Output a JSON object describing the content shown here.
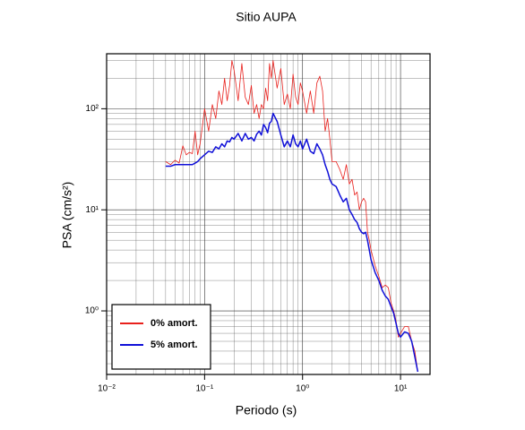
{
  "chart_data": {
    "type": "line",
    "title": "Sitio AUPA",
    "x_label": "Periodo (s)",
    "y_label": "PSA (cm/s²)",
    "x_scale": "log",
    "y_scale": "log",
    "grid": true,
    "legend": "lower left",
    "xlim": [
      0.01,
      20
    ],
    "ylim": [
      0.235,
      350
    ],
    "xticks": [
      {
        "value": 0.01,
        "label": "10⁻²"
      },
      {
        "value": 0.1,
        "label": "10⁻¹"
      },
      {
        "value": 1,
        "label": "10⁰"
      },
      {
        "value": 10,
        "label": "10¹"
      }
    ],
    "yticks": [
      {
        "value": 1,
        "label": "10⁰"
      },
      {
        "value": 10,
        "label": "10¹"
      },
      {
        "value": 100,
        "label": "10²"
      }
    ],
    "x": [
      0.04,
      0.045,
      0.05,
      0.055,
      0.06,
      0.065,
      0.07,
      0.075,
      0.08,
      0.085,
      0.09,
      0.1,
      0.11,
      0.12,
      0.13,
      0.14,
      0.15,
      0.16,
      0.17,
      0.18,
      0.19,
      0.2,
      0.22,
      0.24,
      0.26,
      0.28,
      0.3,
      0.32,
      0.34,
      0.36,
      0.38,
      0.4,
      0.42,
      0.44,
      0.46,
      0.48,
      0.5,
      0.55,
      0.6,
      0.65,
      0.7,
      0.75,
      0.8,
      0.85,
      0.9,
      0.95,
      1.0,
      1.1,
      1.2,
      1.3,
      1.4,
      1.5,
      1.6,
      1.7,
      1.8,
      1.9,
      2.0,
      2.2,
      2.4,
      2.6,
      2.8,
      3.0,
      3.2,
      3.4,
      3.6,
      3.8,
      4.0,
      4.2,
      4.4,
      4.6,
      4.8,
      5.0,
      5.5,
      6.0,
      6.5,
      7.0,
      7.5,
      8.0,
      8.5,
      9.0,
      9.5,
      10,
      11,
      12,
      13,
      14,
      15
    ],
    "series": [
      {
        "name": "0% amort.",
        "color": "#e8201c",
        "width": 0.8,
        "values": [
          30,
          28,
          31,
          29,
          43,
          35,
          37,
          36,
          60,
          35,
          45,
          100,
          60,
          110,
          80,
          150,
          110,
          200,
          120,
          170,
          300,
          240,
          120,
          280,
          130,
          110,
          170,
          90,
          110,
          80,
          110,
          100,
          160,
          120,
          280,
          200,
          300,
          160,
          250,
          110,
          140,
          100,
          220,
          130,
          110,
          180,
          150,
          90,
          150,
          90,
          180,
          210,
          150,
          60,
          80,
          50,
          30,
          30,
          25,
          20,
          28,
          18,
          20,
          14,
          15,
          10,
          12,
          13,
          12,
          6,
          5,
          4,
          2.8,
          2.2,
          1.7,
          1.8,
          1.7,
          1.2,
          1.0,
          0.8,
          0.55,
          0.6,
          0.7,
          0.7,
          0.5,
          0.4,
          0.25
        ]
      },
      {
        "name": "5% amort.",
        "color": "#1010d8",
        "width": 1.5,
        "values": [
          27,
          27,
          28,
          28,
          28,
          28,
          28,
          28,
          29,
          30,
          32,
          35,
          38,
          37,
          42,
          40,
          45,
          42,
          48,
          47,
          52,
          50,
          57,
          48,
          57,
          50,
          52,
          48,
          56,
          60,
          55,
          70,
          65,
          58,
          72,
          75,
          90,
          75,
          55,
          42,
          48,
          42,
          55,
          45,
          42,
          48,
          40,
          50,
          38,
          36,
          45,
          40,
          35,
          28,
          24,
          20,
          18,
          17,
          14,
          12,
          13,
          10,
          9,
          8,
          7.5,
          6.5,
          6,
          5.8,
          6,
          5,
          4,
          3.2,
          2.4,
          2.0,
          1.6,
          1.4,
          1.3,
          1.1,
          0.95,
          0.75,
          0.6,
          0.55,
          0.62,
          0.6,
          0.5,
          0.35,
          0.25
        ]
      }
    ]
  }
}
